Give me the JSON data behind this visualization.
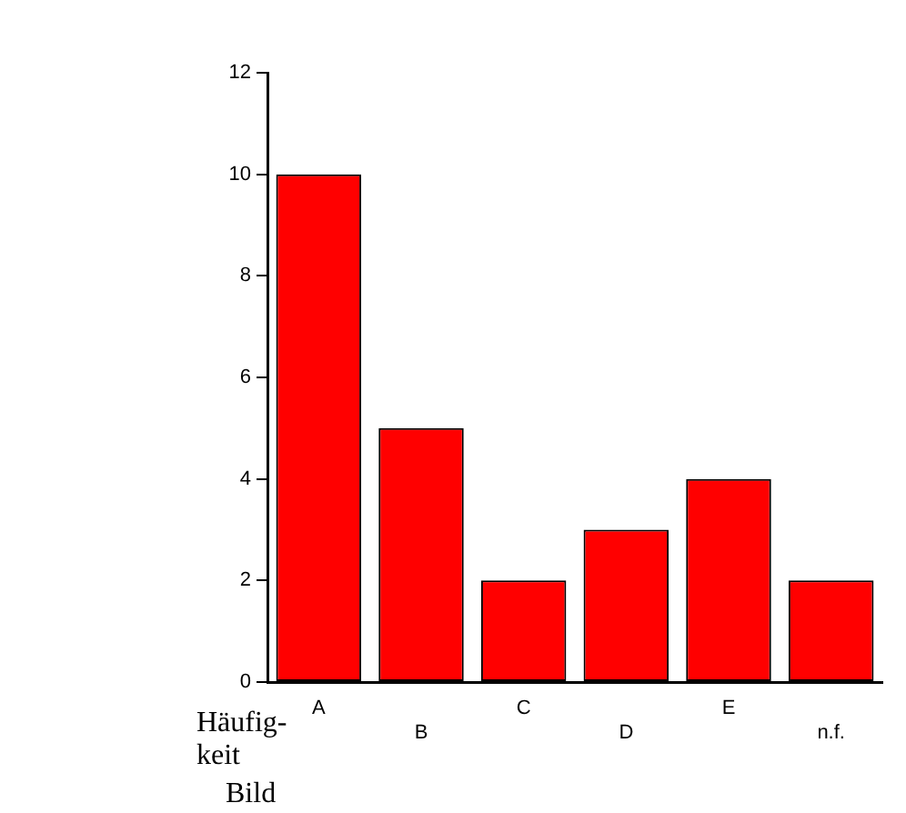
{
  "chart_data": {
    "type": "bar",
    "categories": [
      "A",
      "B",
      "C",
      "D",
      "E",
      "n.f."
    ],
    "values": [
      10,
      5,
      2,
      3,
      4,
      2
    ],
    "color": "#ff0000",
    "ylim": [
      0,
      12
    ],
    "yticks": [
      0,
      2,
      4,
      6,
      8,
      10,
      12
    ],
    "xlabel": "Bild",
    "ylabel": "Häufig-\nkeit",
    "grid": false,
    "legend": false
  }
}
